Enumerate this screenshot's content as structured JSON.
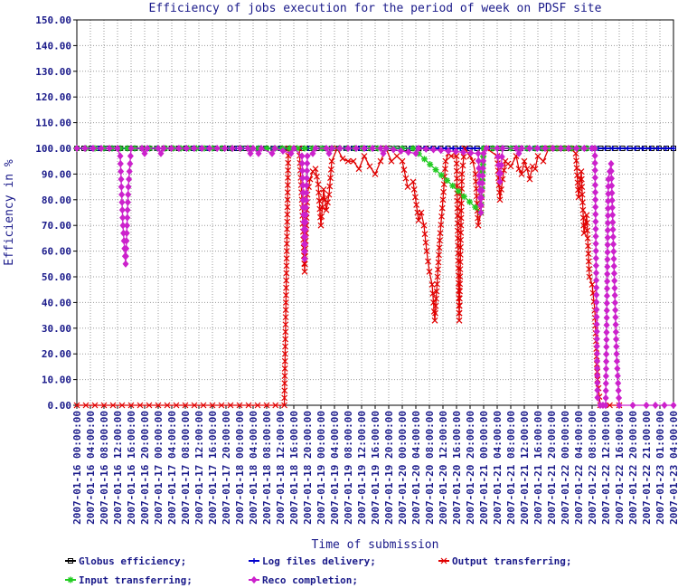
{
  "chart_data": {
    "type": "line",
    "title": "Efficiency of jobs execution for the period of week on  PDSF site",
    "xlabel": "Time of submission",
    "ylabel": "Efficiency in %",
    "ylim": [
      0,
      150
    ],
    "yticks": [
      "0.00",
      "10.00",
      "20.00",
      "30.00",
      "40.00",
      "50.00",
      "60.00",
      "70.00",
      "80.00",
      "90.00",
      "100.00",
      "110.00",
      "120.00",
      "130.00",
      "140.00",
      "150.00"
    ],
    "xticks": [
      "2007-01-16 00:00:00",
      "2007-01-16 04:00:00",
      "2007-01-16 08:00:00",
      "2007-01-16 12:00:00",
      "2007-01-16 16:00:00",
      "2007-01-16 20:00:00",
      "2007-01-17 00:00:00",
      "2007-01-17 04:00:00",
      "2007-01-17 08:00:00",
      "2007-01-17 12:00:00",
      "2007-01-17 16:00:00",
      "2007-01-17 20:00:00",
      "2007-01-18 00:00:00",
      "2007-01-18 04:00:00",
      "2007-01-18 08:00:00",
      "2007-01-18 12:00:00",
      "2007-01-18 16:00:00",
      "2007-01-18 20:00:00",
      "2007-01-19 00:00:00",
      "2007-01-19 04:00:00",
      "2007-01-19 08:00:00",
      "2007-01-19 12:00:00",
      "2007-01-19 16:00:00",
      "2007-01-19 20:00:00",
      "2007-01-20 00:00:00",
      "2007-01-20 04:00:00",
      "2007-01-20 08:00:00",
      "2007-01-20 12:00:00",
      "2007-01-20 16:00:00",
      "2007-01-20 20:00:00",
      "2007-01-21 00:00:00",
      "2007-01-21 04:00:00",
      "2007-01-21 08:00:00",
      "2007-01-21 12:00:00",
      "2007-01-21 16:00:00",
      "2007-01-21 20:00:00",
      "2007-01-22 00:00:00",
      "2007-01-22 04:00:00",
      "2007-01-22 08:00:00",
      "2007-01-22 12:00:00",
      "2007-01-22 16:00:00",
      "2007-01-22 20:00:00",
      "2007-01-22 21:00:00",
      "2007-01-23 01:00:00",
      "2007-01-23 04:00:00"
    ],
    "legend": [
      {
        "name": "Globus efficiency;",
        "color": "#000000",
        "marker": "square"
      },
      {
        "name": "Log files delivery;",
        "color": "#0000cc",
        "marker": "plus"
      },
      {
        "name": "Output transferring;",
        "color": "#e00000",
        "marker": "x"
      },
      {
        "name": "Input transferring;",
        "color": "#22cc22",
        "marker": "star"
      },
      {
        "name": "Reco completion;",
        "color": "#cc22cc",
        "marker": "diamond"
      }
    ],
    "grid": true,
    "series": [
      {
        "name": "Globus efficiency;",
        "color": "#000000",
        "marker": "square",
        "points": [
          [
            0,
            100
          ],
          [
            44,
            100
          ]
        ]
      },
      {
        "name": "Log files delivery;",
        "color": "#0000cc",
        "marker": "plus",
        "points": [
          [
            0,
            100
          ],
          [
            39.5,
            100
          ],
          [
            44,
            100
          ]
        ]
      },
      {
        "name": "Output transferring;",
        "color": "#e00000",
        "marker": "x",
        "points": [
          [
            0,
            0
          ],
          [
            2,
            0
          ],
          [
            4,
            0
          ],
          [
            6,
            0
          ],
          [
            8,
            0
          ],
          [
            10,
            0
          ],
          [
            12,
            0
          ],
          [
            14,
            0
          ],
          [
            15.3,
            0
          ],
          [
            15.6,
            100
          ],
          [
            16.4,
            100
          ],
          [
            16.6,
            80
          ],
          [
            16.8,
            52
          ],
          [
            17.0,
            82
          ],
          [
            17.2,
            88
          ],
          [
            17.4,
            91
          ],
          [
            17.6,
            92
          ],
          [
            17.8,
            86
          ],
          [
            18.0,
            70
          ],
          [
            18.2,
            84
          ],
          [
            18.4,
            76
          ],
          [
            18.6,
            82
          ],
          [
            18.8,
            95
          ],
          [
            19.2,
            100
          ],
          [
            19.6,
            96
          ],
          [
            20.0,
            95
          ],
          [
            20.4,
            95
          ],
          [
            20.8,
            92
          ],
          [
            21.2,
            97
          ],
          [
            21.6,
            93
          ],
          [
            22.0,
            90
          ],
          [
            22.4,
            95
          ],
          [
            22.8,
            100
          ],
          [
            23.2,
            95
          ],
          [
            23.6,
            97
          ],
          [
            24.0,
            95
          ],
          [
            24.4,
            85
          ],
          [
            24.8,
            87
          ],
          [
            25.2,
            72
          ],
          [
            25.4,
            75
          ],
          [
            25.6,
            70
          ],
          [
            25.8,
            60
          ],
          [
            26.0,
            52
          ],
          [
            26.2,
            47
          ],
          [
            26.4,
            33
          ],
          [
            26.6,
            50
          ],
          [
            26.8,
            67
          ],
          [
            27.0,
            80
          ],
          [
            27.2,
            95
          ],
          [
            27.4,
            98
          ],
          [
            27.6,
            97
          ],
          [
            28.0,
            97
          ],
          [
            28.2,
            33
          ],
          [
            28.4,
            90
          ],
          [
            28.6,
            100
          ],
          [
            29.0,
            97
          ],
          [
            29.2,
            95
          ],
          [
            29.4,
            90
          ],
          [
            29.6,
            70
          ],
          [
            29.8,
            75
          ],
          [
            30.0,
            99
          ],
          [
            30.2,
            100
          ],
          [
            31.0,
            97
          ],
          [
            31.2,
            80
          ],
          [
            31.4,
            88
          ],
          [
            31.6,
            95
          ],
          [
            31.8,
            94
          ],
          [
            32.0,
            93
          ],
          [
            32.4,
            97
          ],
          [
            32.6,
            92
          ],
          [
            32.8,
            90
          ],
          [
            33.0,
            95
          ],
          [
            33.2,
            92
          ],
          [
            33.4,
            88
          ],
          [
            33.6,
            93
          ],
          [
            33.8,
            92
          ],
          [
            34.0,
            97
          ],
          [
            34.4,
            95
          ],
          [
            34.8,
            100
          ],
          [
            36.4,
            100
          ],
          [
            36.8,
            98
          ],
          [
            37.0,
            81
          ],
          [
            37.2,
            91
          ],
          [
            37.4,
            67
          ],
          [
            37.6,
            74
          ],
          [
            37.8,
            50
          ],
          [
            38.0,
            47
          ],
          [
            38.2,
            37
          ],
          [
            38.4,
            10
          ],
          [
            38.6,
            0
          ],
          [
            40,
            0
          ]
        ]
      },
      {
        "name": "Input transferring;",
        "color": "#22cc22",
        "marker": "star",
        "points": [
          [
            0,
            100
          ],
          [
            2.0,
            100
          ],
          [
            3.2,
            100
          ],
          [
            4.8,
            100
          ],
          [
            9.4,
            100
          ],
          [
            10.0,
            100
          ],
          [
            11.4,
            100
          ],
          [
            12.8,
            100
          ],
          [
            14.6,
            100
          ],
          [
            16.8,
            100
          ],
          [
            17.4,
            100
          ],
          [
            18.8,
            100
          ],
          [
            22.2,
            100
          ],
          [
            24.0,
            100
          ],
          [
            24.8,
            100
          ],
          [
            29.8,
            75
          ],
          [
            30.0,
            100
          ],
          [
            32.0,
            100
          ],
          [
            33.8,
            100
          ],
          [
            37.0,
            100
          ],
          [
            38.2,
            100
          ]
        ]
      },
      {
        "name": "Reco completion;",
        "color": "#cc22cc",
        "marker": "diamond",
        "points": [
          [
            0,
            100
          ],
          [
            3.0,
            100
          ],
          [
            3.2,
            97
          ],
          [
            3.4,
            70
          ],
          [
            3.6,
            55
          ],
          [
            3.8,
            85
          ],
          [
            4.0,
            100
          ],
          [
            4.8,
            100
          ],
          [
            5.0,
            98
          ],
          [
            5.2,
            100
          ],
          [
            6.0,
            100
          ],
          [
            6.2,
            98
          ],
          [
            6.4,
            100
          ],
          [
            12.6,
            100
          ],
          [
            12.8,
            98
          ],
          [
            13.0,
            100
          ],
          [
            13.4,
            98
          ],
          [
            13.6,
            100
          ],
          [
            14.4,
            98
          ],
          [
            14.6,
            100
          ],
          [
            15.8,
            98
          ],
          [
            16.0,
            100
          ],
          [
            16.6,
            97
          ],
          [
            16.8,
            57
          ],
          [
            17.0,
            97
          ],
          [
            17.4,
            98
          ],
          [
            17.6,
            100
          ],
          [
            18.4,
            100
          ],
          [
            18.6,
            98
          ],
          [
            18.8,
            100
          ],
          [
            22.4,
            100
          ],
          [
            22.6,
            98
          ],
          [
            22.8,
            100
          ],
          [
            25.0,
            98
          ],
          [
            25.2,
            100
          ],
          [
            29.6,
            98
          ],
          [
            29.8,
            75
          ],
          [
            30.0,
            98
          ],
          [
            30.2,
            100
          ],
          [
            31.0,
            100
          ],
          [
            31.2,
            87
          ],
          [
            31.4,
            100
          ],
          [
            32.4,
            100
          ],
          [
            32.6,
            98
          ],
          [
            32.8,
            100
          ],
          [
            38.0,
            100
          ],
          [
            38.2,
            100
          ],
          [
            38.4,
            3
          ],
          [
            38.6,
            0
          ],
          [
            38.8,
            0
          ],
          [
            39.0,
            0
          ],
          [
            39.2,
            88
          ],
          [
            39.4,
            94
          ],
          [
            39.6,
            57
          ],
          [
            39.8,
            20
          ],
          [
            40.0,
            0
          ],
          [
            41.0,
            0
          ],
          [
            42.0,
            0
          ],
          [
            44.0,
            0
          ]
        ]
      }
    ]
  }
}
